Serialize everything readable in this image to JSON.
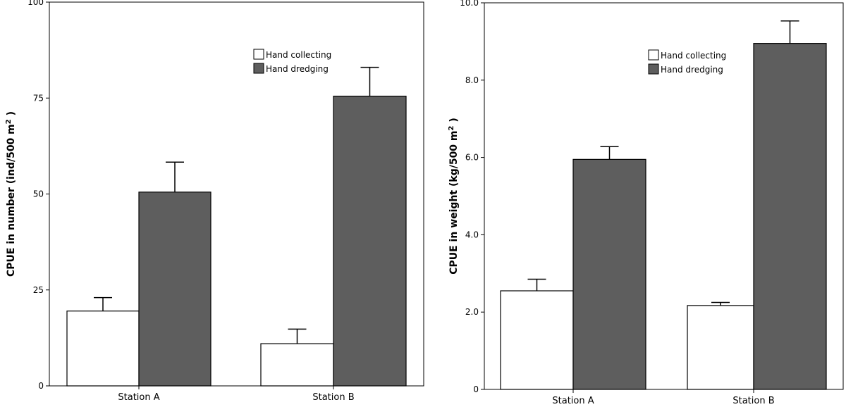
{
  "chart_data": [
    {
      "type": "bar",
      "categories": [
        "Station A",
        "Station B"
      ],
      "series": [
        {
          "name": "Hand collecting",
          "values": [
            19.5,
            11.0
          ],
          "error": [
            3.5,
            3.8
          ],
          "color": "#ffffff"
        },
        {
          "name": "Hand dredging",
          "values": [
            50.5,
            75.5
          ],
          "error": [
            7.8,
            7.5
          ],
          "color": "#5e5e5e"
        }
      ],
      "ylabel": "CPUE  in  number  (ind/500  m",
      "ylabel_sup": "2",
      "ylabel_end": " )",
      "ylim": [
        0,
        100
      ],
      "yticks": [
        0,
        25,
        50,
        75,
        100
      ],
      "ytick_labels": [
        "0",
        "25",
        "50",
        "75",
        "100"
      ],
      "legend_position": "top-right"
    },
    {
      "type": "bar",
      "categories": [
        "Station A",
        "Station B"
      ],
      "series": [
        {
          "name": "Hand collecting",
          "values": [
            2.55,
            2.17
          ],
          "error": [
            0.3,
            0.08
          ],
          "color": "#ffffff"
        },
        {
          "name": "Hand dredging",
          "values": [
            5.95,
            8.95
          ],
          "error": [
            0.33,
            0.58
          ],
          "color": "#5e5e5e"
        }
      ],
      "ylabel": "CPUE  in  weight  (kg/500  m",
      "ylabel_sup": "2",
      "ylabel_end": " )",
      "ylim": [
        0,
        10
      ],
      "yticks": [
        0,
        2,
        4,
        6,
        8,
        10
      ],
      "ytick_labels": [
        "0",
        "2.0",
        "4.0",
        "6.0",
        "8.0",
        "10.0"
      ],
      "legend_position": "top-right"
    }
  ]
}
